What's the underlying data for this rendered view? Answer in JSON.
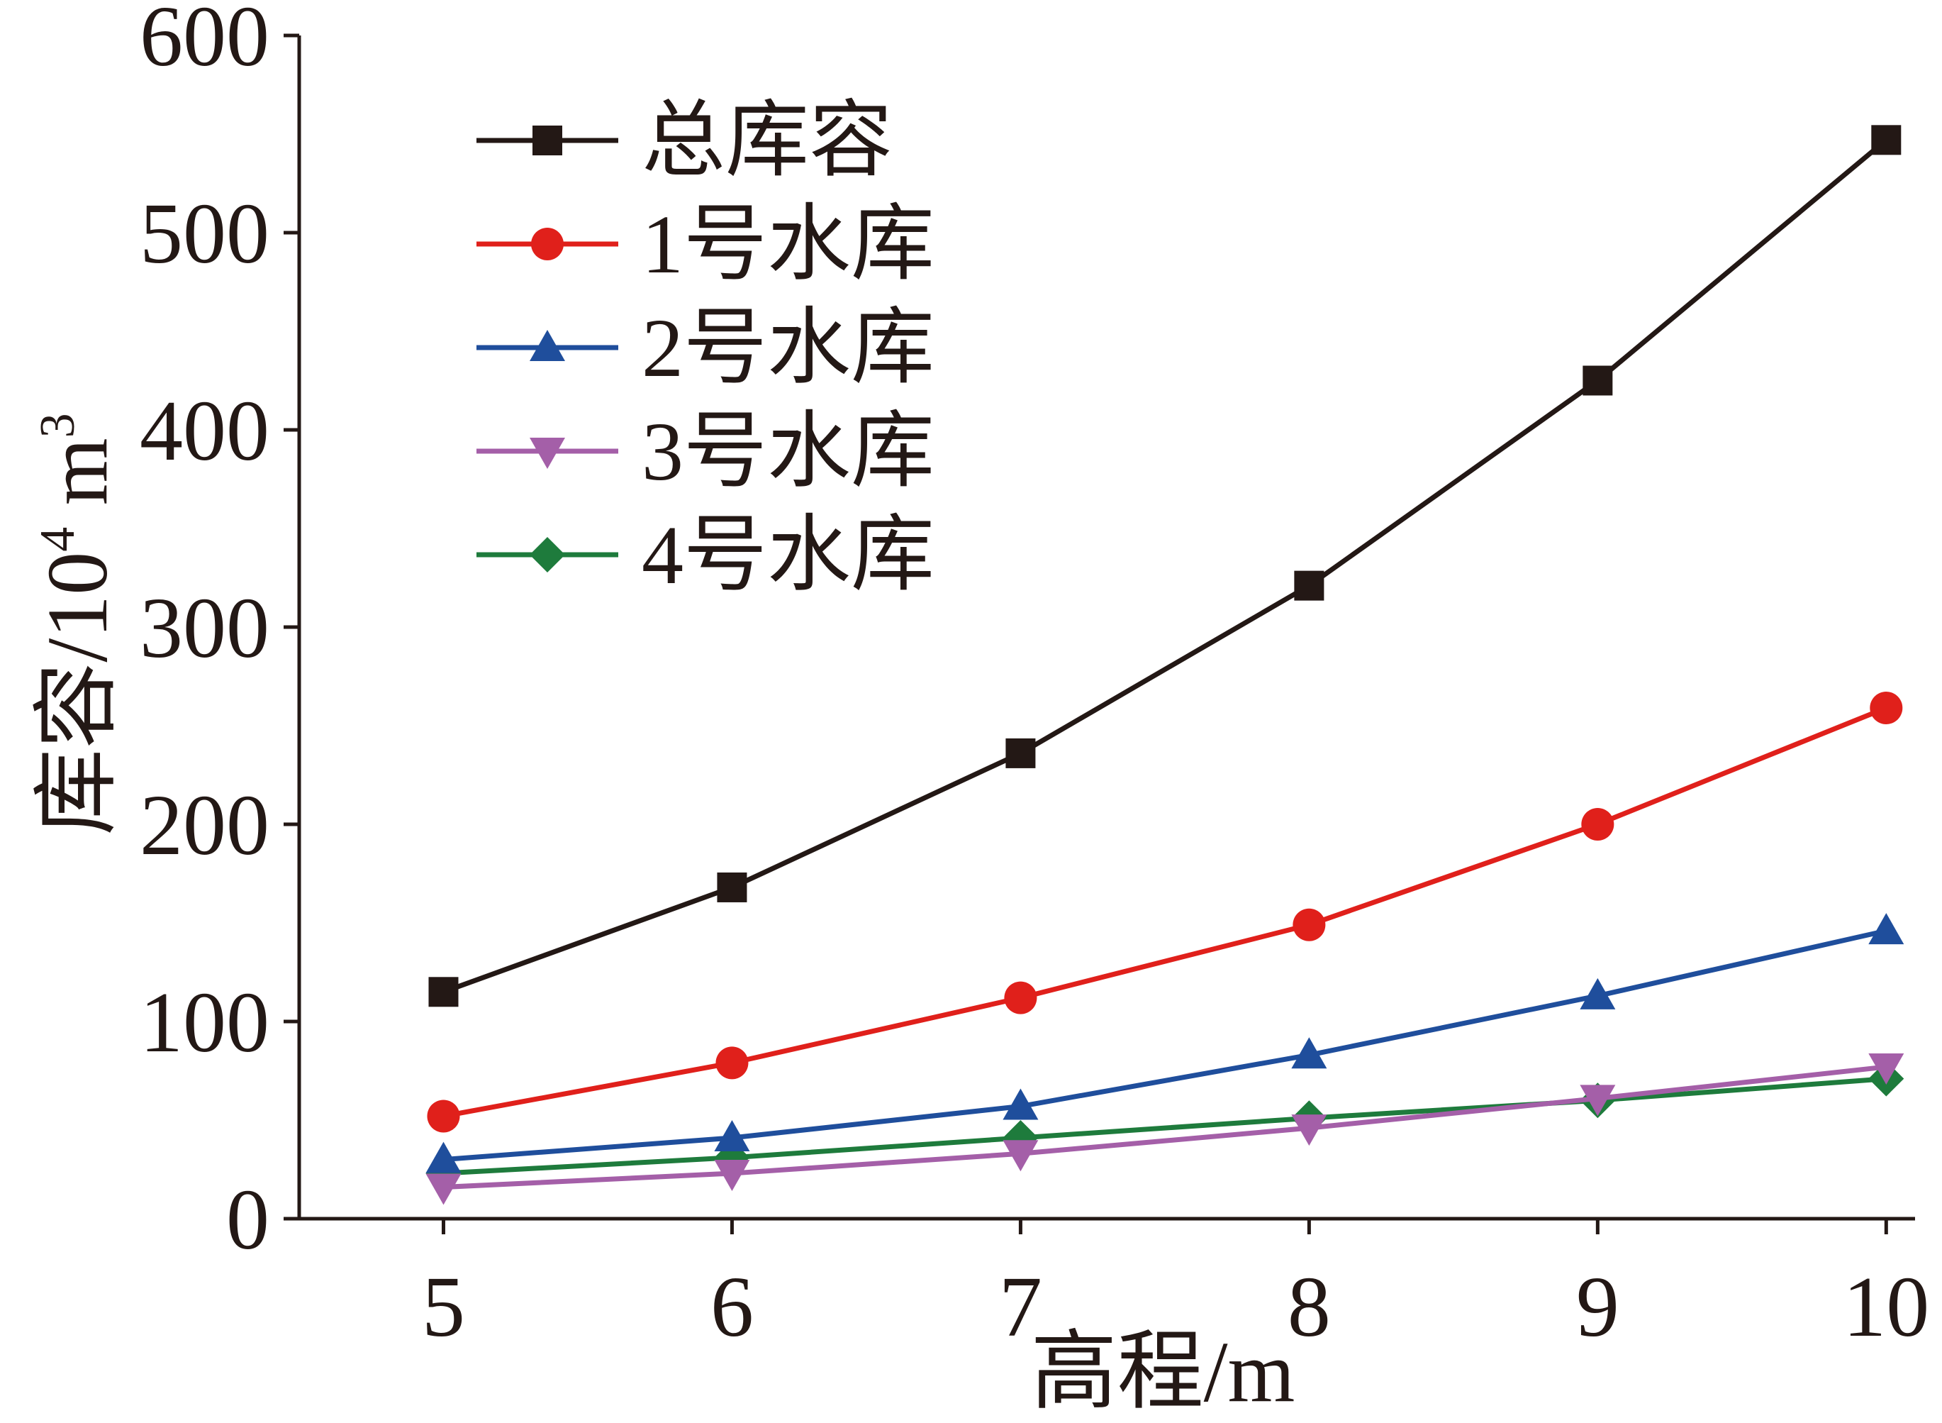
{
  "chart_data": {
    "type": "line",
    "title": "",
    "xlabel": "高程/m",
    "ylabel": {
      "text": "库容/10",
      "sup1": "4",
      "unit": " m",
      "sup2": "3"
    },
    "x": [
      5,
      6,
      7,
      8,
      9,
      10
    ],
    "xlim": [
      4.5,
      10.1
    ],
    "ylim": [
      0,
      600
    ],
    "xticks": [
      "5",
      "6",
      "7",
      "8",
      "9",
      "10"
    ],
    "yticks": [
      "0",
      "100",
      "200",
      "300",
      "400",
      "500",
      "600"
    ],
    "grid": false,
    "legend_position": "top-left",
    "series": [
      {
        "name": "总库容",
        "color": "#231815",
        "marker": "square",
        "values": [
          115,
          168,
          236,
          321,
          425,
          547
        ]
      },
      {
        "name": "1号水库",
        "color": "#e0201b",
        "marker": "circle",
        "values": [
          52,
          79,
          112,
          149,
          200,
          259
        ]
      },
      {
        "name": "2号水库",
        "color": "#1f4e9c",
        "marker": "triangle-up",
        "values": [
          30,
          41,
          57,
          83,
          113,
          146
        ]
      },
      {
        "name": "3号水库",
        "color": "#a45fa8",
        "marker": "triangle-down",
        "values": [
          16,
          23,
          33,
          46,
          61,
          77
        ]
      },
      {
        "name": "4号水库",
        "color": "#1e7b3c",
        "marker": "diamond",
        "values": [
          23,
          31,
          41,
          51,
          60,
          71
        ]
      }
    ]
  }
}
